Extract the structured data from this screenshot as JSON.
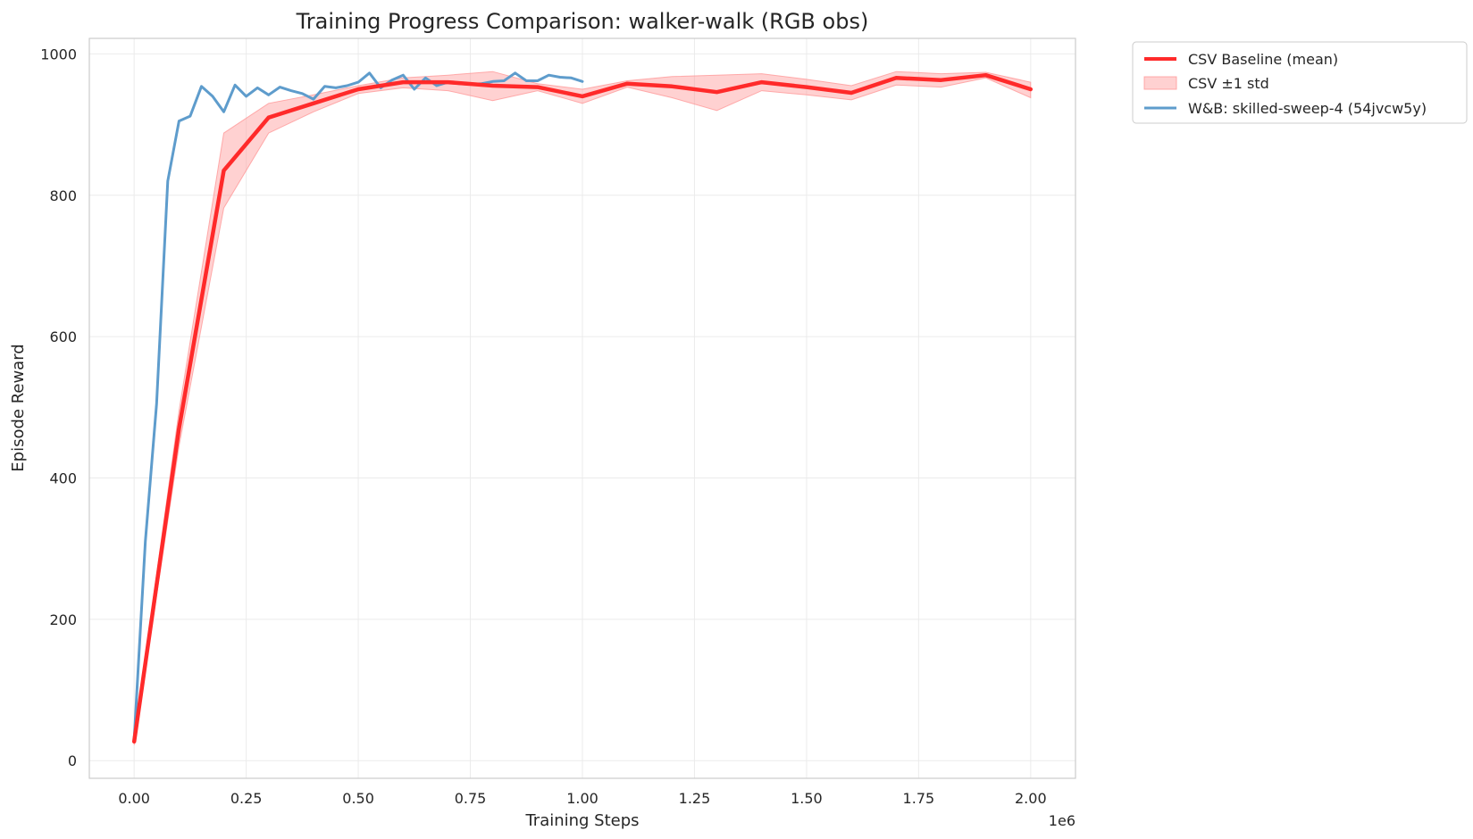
{
  "chart_data": {
    "type": "line",
    "title": "Training Progress Comparison: walker-walk (RGB obs)",
    "xlabel": "Training Steps",
    "ylabel": "Episode Reward",
    "x_offset_label": "1e6",
    "xlim": [
      -0.1,
      2.1
    ],
    "ylim": [
      -25,
      1022
    ],
    "x_ticks": [
      0.0,
      0.25,
      0.5,
      0.75,
      1.0,
      1.25,
      1.5,
      1.75,
      2.0
    ],
    "x_tick_labels": [
      "0.00",
      "0.25",
      "0.50",
      "0.75",
      "1.00",
      "1.25",
      "1.50",
      "1.75",
      "2.00"
    ],
    "y_ticks": [
      0,
      200,
      400,
      600,
      800,
      1000
    ],
    "y_tick_labels": [
      "0",
      "200",
      "400",
      "600",
      "800",
      "1000"
    ],
    "grid": true,
    "legend_position": "outside-top-right",
    "series": [
      {
        "name": "CSV Baseline (mean)",
        "kind": "line",
        "color": "#ff2a2a",
        "x": [
          0.0,
          0.1,
          0.2,
          0.3,
          0.4,
          0.5,
          0.6,
          0.7,
          0.8,
          0.9,
          1.0,
          1.1,
          1.2,
          1.3,
          1.4,
          1.5,
          1.6,
          1.7,
          1.8,
          1.9,
          2.0
        ],
        "y": [
          27,
          470,
          835,
          910,
          930,
          950,
          960,
          960,
          955,
          953,
          940,
          958,
          954,
          946,
          960,
          953,
          945,
          966,
          963,
          970,
          950
        ]
      },
      {
        "name": "CSV ±1 std",
        "kind": "band",
        "color": "#ff9999",
        "x": [
          0.0,
          0.1,
          0.2,
          0.3,
          0.4,
          0.5,
          0.6,
          0.7,
          0.8,
          0.9,
          1.0,
          1.1,
          1.2,
          1.3,
          1.4,
          1.5,
          1.6,
          1.7,
          1.8,
          1.9,
          2.0
        ],
        "lower": [
          22,
          445,
          782,
          888,
          918,
          944,
          952,
          948,
          934,
          948,
          930,
          953,
          938,
          920,
          948,
          942,
          935,
          956,
          953,
          966,
          938
        ],
        "upper": [
          32,
          495,
          888,
          930,
          942,
          955,
          966,
          970,
          975,
          958,
          950,
          962,
          968,
          970,
          972,
          964,
          955,
          975,
          972,
          974,
          960
        ]
      },
      {
        "name": "W&B: skilled-sweep-4 (54jvcw5y)",
        "kind": "line",
        "color": "#5e9ccc",
        "x": [
          0.0,
          0.025,
          0.05,
          0.075,
          0.1,
          0.125,
          0.15,
          0.175,
          0.2,
          0.225,
          0.25,
          0.275,
          0.3,
          0.325,
          0.35,
          0.375,
          0.4,
          0.425,
          0.45,
          0.475,
          0.5,
          0.525,
          0.55,
          0.575,
          0.6,
          0.625,
          0.65,
          0.675,
          0.7,
          0.725,
          0.75,
          0.775,
          0.8,
          0.825,
          0.85,
          0.875,
          0.9,
          0.925,
          0.95,
          0.975,
          1.0
        ],
        "y": [
          30,
          310,
          505,
          820,
          905,
          912,
          954,
          940,
          918,
          956,
          940,
          952,
          942,
          953,
          948,
          944,
          936,
          954,
          952,
          955,
          960,
          973,
          952,
          963,
          970,
          950,
          966,
          955,
          960,
          958,
          957,
          958,
          961,
          962,
          973,
          962,
          962,
          970,
          967,
          966,
          961
        ]
      }
    ]
  }
}
